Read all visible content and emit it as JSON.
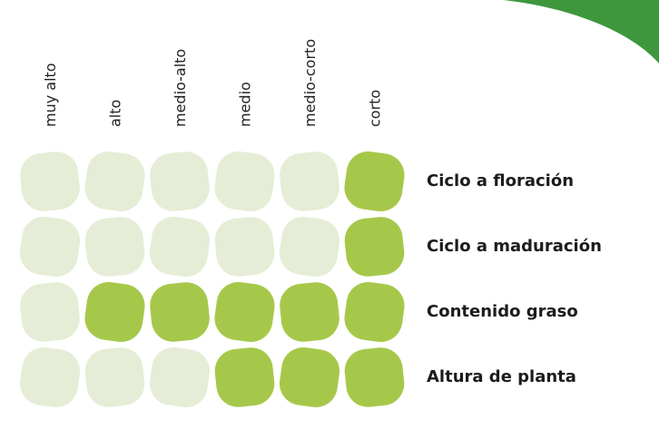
{
  "columns": [
    "muy alto",
    "alto",
    "medio-alto",
    "medio",
    "medio-corto",
    "corto"
  ],
  "rows": [
    {
      "label": "Ciclo a floración",
      "filled": [
        false,
        false,
        false,
        false,
        false,
        true
      ]
    },
    {
      "label": "Ciclo a maduración",
      "filled": [
        false,
        false,
        false,
        false,
        false,
        true
      ]
    },
    {
      "label": "Contenido graso",
      "filled": [
        false,
        true,
        true,
        true,
        true,
        true
      ]
    },
    {
      "label": "Altura de planta",
      "filled": [
        false,
        false,
        false,
        true,
        true,
        true
      ]
    }
  ]
}
